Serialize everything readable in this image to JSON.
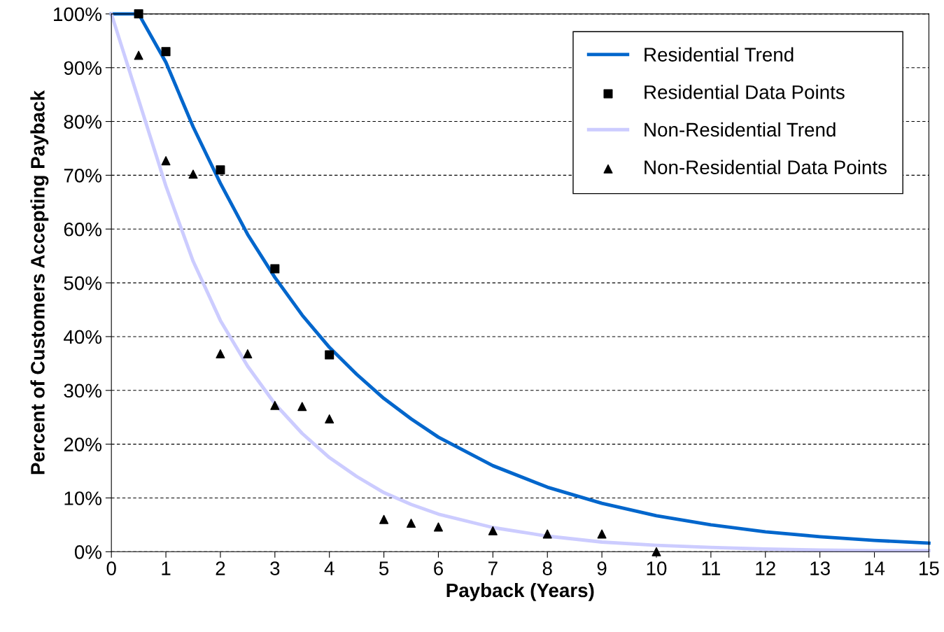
{
  "chart_data": {
    "type": "line",
    "xlabel": "Payback (Years)",
    "ylabel": "Percent of Customers Accepting Payback",
    "xlim": [
      0,
      15
    ],
    "xticks": [
      0,
      1,
      2,
      3,
      4,
      5,
      6,
      7,
      8,
      9,
      10,
      11,
      12,
      13,
      14,
      15
    ],
    "ylim": [
      0,
      100
    ],
    "yticks": [
      {
        "value": 0,
        "label": "0%"
      },
      {
        "value": 10,
        "label": "10%"
      },
      {
        "value": 20,
        "label": "20%"
      },
      {
        "value": 30,
        "label": "30%"
      },
      {
        "value": 40,
        "label": "40%"
      },
      {
        "value": 50,
        "label": "50%"
      },
      {
        "value": 60,
        "label": "60%"
      },
      {
        "value": 70,
        "label": "70%"
      },
      {
        "value": 80,
        "label": "80%"
      },
      {
        "value": 90,
        "label": "90%"
      },
      {
        "value": 100,
        "label": "100%"
      }
    ],
    "grid": "y",
    "legend": "top right",
    "series": [
      {
        "name": "Residential Trend",
        "marker": "none",
        "color": "#0066cc",
        "x": [
          0,
          0.5,
          1,
          1.5,
          2,
          2.5,
          3,
          3.5,
          4,
          4.5,
          5,
          5.5,
          6,
          7,
          8,
          9,
          10,
          11,
          12,
          13,
          14,
          15
        ],
        "values": [
          100,
          100,
          91,
          79,
          68.5,
          59,
          51,
          44,
          38,
          33,
          28.5,
          24.7,
          21.3,
          16,
          12,
          9,
          6.7,
          5,
          3.7,
          2.8,
          2.1,
          1.6
        ]
      },
      {
        "name": "Residential Data Points",
        "type": "scatter",
        "marker": "square",
        "color": "#000000",
        "x": [
          0.5,
          1,
          2,
          3,
          4
        ],
        "values": [
          100,
          93,
          71,
          52.6,
          36.6
        ]
      },
      {
        "name": "Non-Residential Trend",
        "marker": "none",
        "color": "#ccccff",
        "x": [
          0,
          0.5,
          1,
          1.5,
          2,
          2.5,
          3,
          3.5,
          4,
          4.5,
          5,
          5.5,
          6,
          7,
          8,
          9,
          10,
          11,
          12,
          13,
          14,
          15
        ],
        "values": [
          100,
          84,
          68,
          54,
          43,
          34.5,
          27.5,
          22,
          17.5,
          14,
          11,
          8.8,
          7,
          4.5,
          2.9,
          1.8,
          1.2,
          0.8,
          0.5,
          0.3,
          0.2,
          0.2
        ]
      },
      {
        "name": "Non-Residential Data Points",
        "type": "scatter",
        "marker": "triangle",
        "color": "#000000",
        "x": [
          0.5,
          1,
          1.5,
          2,
          2.5,
          3,
          3.5,
          4,
          5,
          5.5,
          6,
          7,
          8,
          9,
          10
        ],
        "values": [
          92.3,
          72.7,
          70.2,
          36.8,
          36.8,
          27.2,
          27,
          24.7,
          6,
          5.3,
          4.6,
          3.9,
          3.3,
          3.3,
          0
        ]
      }
    ]
  }
}
